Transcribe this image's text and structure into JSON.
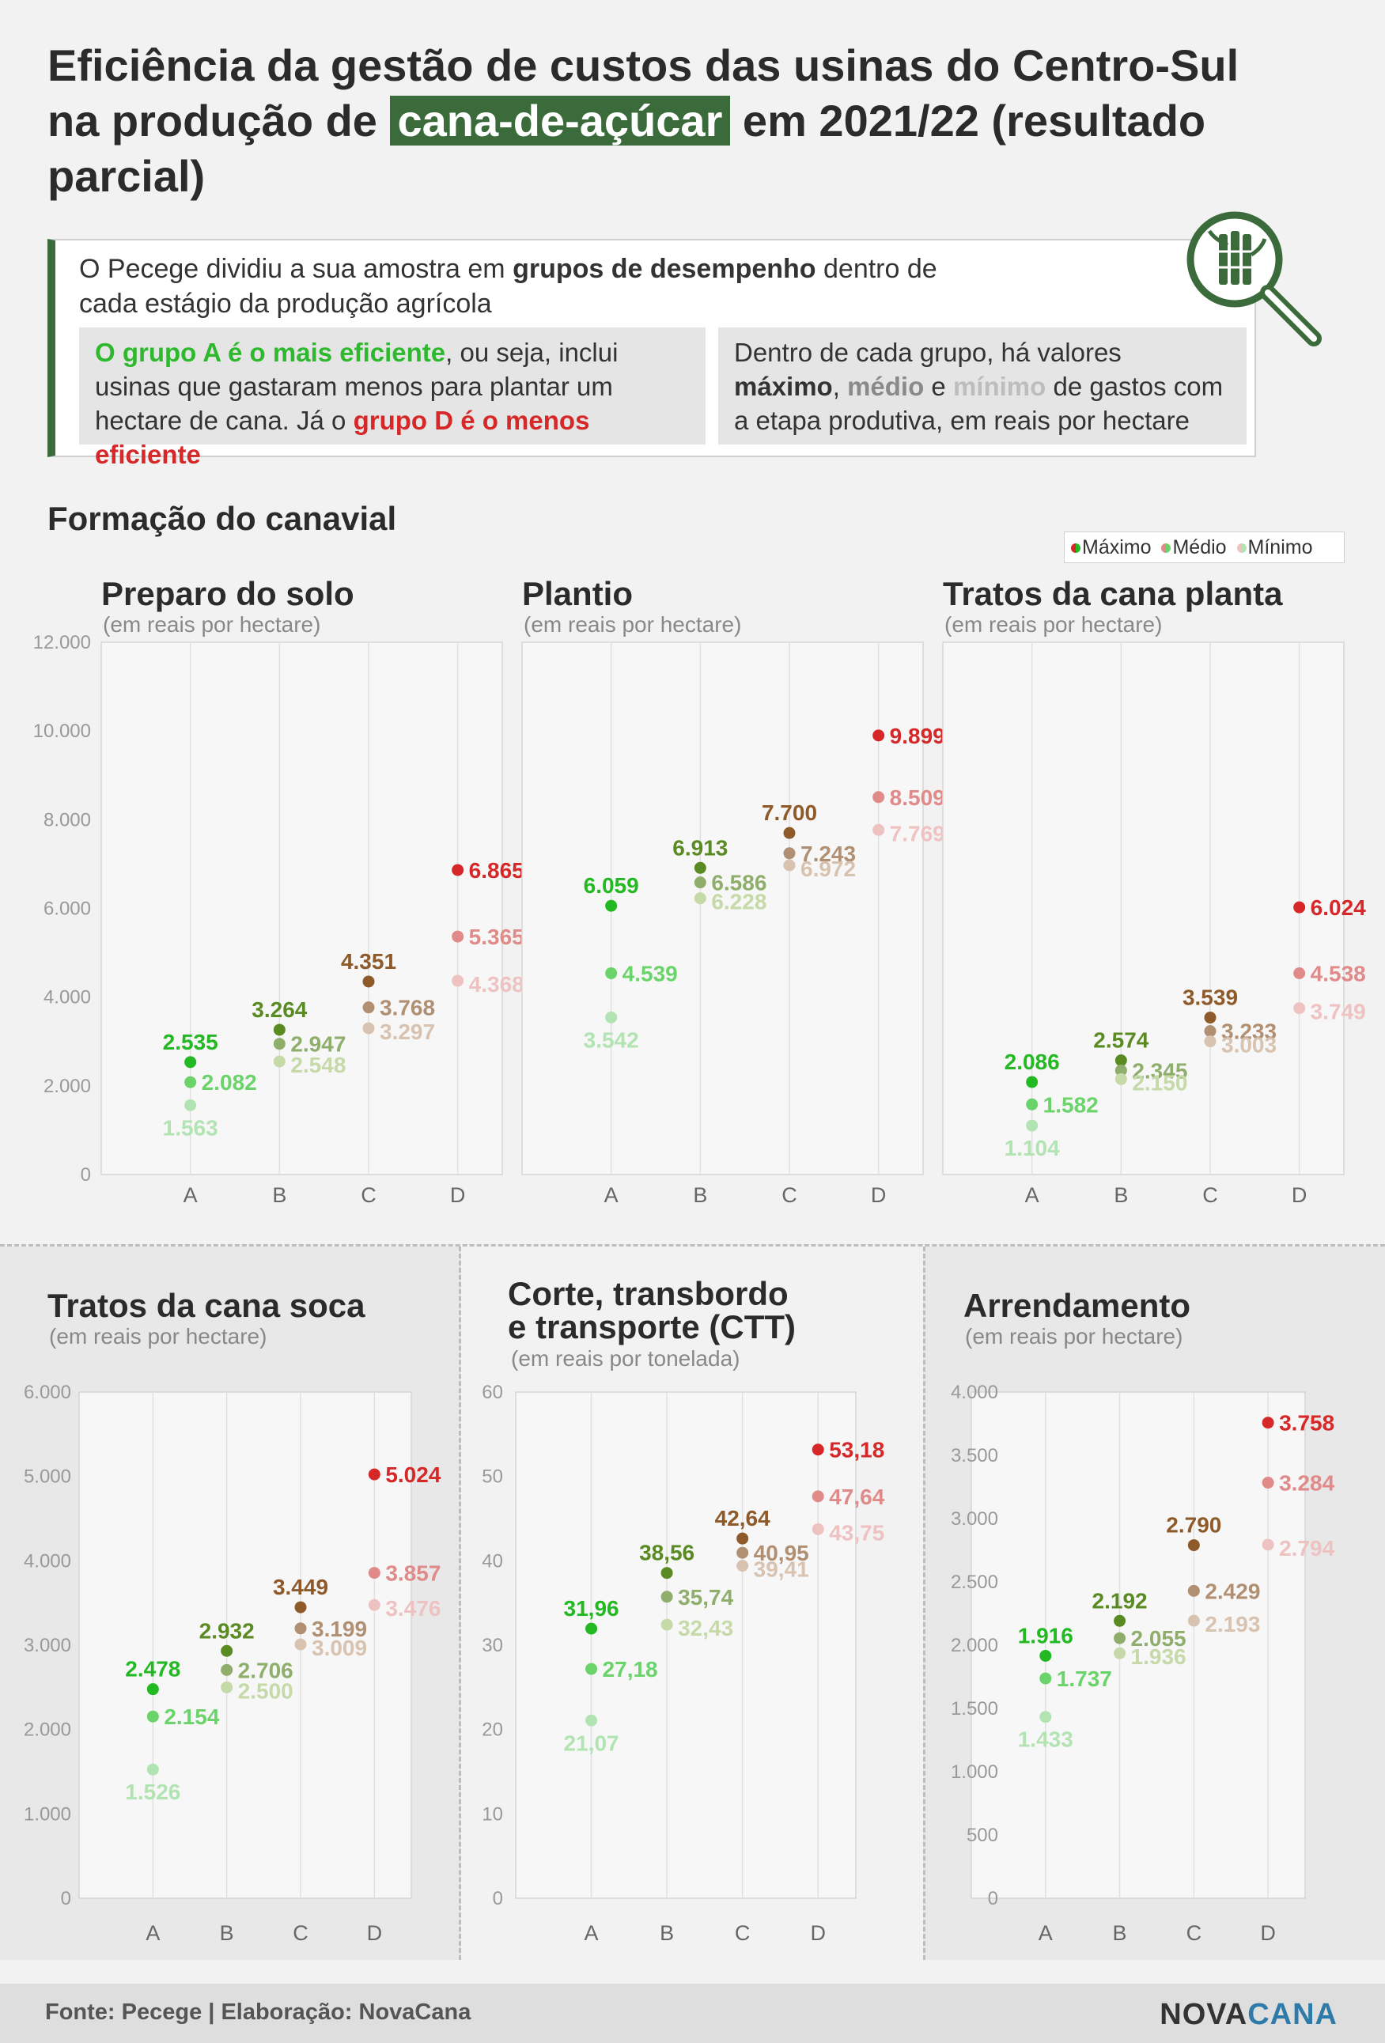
{
  "title": {
    "part1": "Eficiência da gestão de custos das usinas do Centro-Sul na produção de ",
    "highlight": "cana-de-açúcar",
    "part2": " em 2021/22 (resultado parcial)"
  },
  "intro": {
    "p1": "O Pecege dividiu a sua amostra em ",
    "p1_bold": "grupos de desempenho",
    "p1_end": " dentro de cada estágio da produção agrícola",
    "left_green": "O grupo A é o mais eficiente",
    "left_mid": ", ou seja, inclui usinas que gastaram menos para plantar um hectare de cana. Já o ",
    "left_red": "grupo D é o menos eficiente",
    "right_a": "Dentro de cada grupo, há valores ",
    "right_max": "máximo",
    "right_sep1": ", ",
    "right_med": "médio",
    "right_sep2": " e ",
    "right_min": "mínimo",
    "right_end": " de gastos com a etapa produtiva, em reais por hectare"
  },
  "section_title": "Formação do canavial",
  "legend": {
    "max": "Máximo",
    "med": "Médio",
    "min": "Mínimo"
  },
  "colors": {
    "A": [
      "#22b922",
      "#6ad46a",
      "#b2e3b2"
    ],
    "B": [
      "#5a8a22",
      "#8fae6c",
      "#c6d9a8"
    ],
    "C": [
      "#8e5a2a",
      "#b08f72",
      "#d8c2b0"
    ],
    "D": [
      "#d62828",
      "#e08a8a",
      "#efc2c2"
    ]
  },
  "chart_data": [
    {
      "type": "scatter",
      "title": "Preparo do solo",
      "subtitle": "(em reais por hectare)",
      "categories": [
        "A",
        "B",
        "C",
        "D"
      ],
      "ylim": [
        0,
        12000
      ],
      "yticks": [
        0,
        2000,
        4000,
        6000,
        8000,
        10000,
        12000
      ],
      "yticklabels": [
        "0",
        "2.000",
        "4.000",
        "6.000",
        "8.000",
        "10.000",
        "12.000"
      ],
      "series": [
        {
          "name": "Máximo",
          "values": [
            2535,
            3264,
            4351,
            6865
          ],
          "labels": [
            "2.535",
            "3.264",
            "4.351",
            "6.865"
          ]
        },
        {
          "name": "Médio",
          "values": [
            2082,
            2947,
            3768,
            5365
          ],
          "labels": [
            "2.082",
            "2.947",
            "3.768",
            "5.365"
          ]
        },
        {
          "name": "Mínimo",
          "values": [
            1563,
            2548,
            3297,
            4368
          ],
          "labels": [
            "1.563",
            "2.548",
            "3.297",
            "4.368"
          ]
        }
      ]
    },
    {
      "type": "scatter",
      "title": "Plantio",
      "subtitle": "(em reais por hectare)",
      "categories": [
        "A",
        "B",
        "C",
        "D"
      ],
      "ylim": [
        0,
        12000
      ],
      "yticks": [
        0,
        2000,
        4000,
        6000,
        8000,
        10000,
        12000
      ],
      "yticklabels": [],
      "series": [
        {
          "name": "Máximo",
          "values": [
            6059,
            6913,
            7700,
            9899
          ],
          "labels": [
            "6.059",
            "6.913",
            "7.700",
            "9.899"
          ]
        },
        {
          "name": "Médio",
          "values": [
            4539,
            6586,
            7243,
            8509
          ],
          "labels": [
            "4.539",
            "6.586",
            "7.243",
            "8.509"
          ]
        },
        {
          "name": "Mínimo",
          "values": [
            3542,
            6228,
            6972,
            7769
          ],
          "labels": [
            "3.542",
            "6.228",
            "6.972",
            "7.769"
          ]
        }
      ]
    },
    {
      "type": "scatter",
      "title": "Tratos da cana planta",
      "subtitle": "(em reais por hectare)",
      "categories": [
        "A",
        "B",
        "C",
        "D"
      ],
      "ylim": [
        0,
        12000
      ],
      "yticks": [
        0,
        2000,
        4000,
        6000,
        8000,
        10000,
        12000
      ],
      "yticklabels": [],
      "series": [
        {
          "name": "Máximo",
          "values": [
            2086,
            2574,
            3539,
            6024
          ],
          "labels": [
            "2.086",
            "2.574",
            "3.539",
            "6.024"
          ]
        },
        {
          "name": "Médio",
          "values": [
            1582,
            2345,
            3233,
            4538
          ],
          "labels": [
            "1.582",
            "2.345",
            "3.233",
            "4.538"
          ]
        },
        {
          "name": "Mínimo",
          "values": [
            1104,
            2150,
            3003,
            3749
          ],
          "labels": [
            "1.104",
            "2.150",
            "3.003",
            "3.749"
          ]
        }
      ]
    },
    {
      "type": "scatter",
      "title": "Tratos da cana soca",
      "subtitle": "(em reais por hectare)",
      "categories": [
        "A",
        "B",
        "C",
        "D"
      ],
      "ylim": [
        0,
        6000
      ],
      "yticks": [
        0,
        1000,
        2000,
        3000,
        4000,
        5000,
        6000
      ],
      "yticklabels": [
        "0",
        "1.000",
        "2.000",
        "3.000",
        "4.000",
        "5.000",
        "6.000"
      ],
      "series": [
        {
          "name": "Máximo",
          "values": [
            2478,
            2932,
            3449,
            5024
          ],
          "labels": [
            "2.478",
            "2.932",
            "3.449",
            "5.024"
          ]
        },
        {
          "name": "Médio",
          "values": [
            2154,
            2706,
            3199,
            3857
          ],
          "labels": [
            "2.154",
            "2.706",
            "3.199",
            "3.857"
          ]
        },
        {
          "name": "Mínimo",
          "values": [
            1526,
            2500,
            3009,
            3476
          ],
          "labels": [
            "1.526",
            "2.500",
            "3.009",
            "3.476"
          ]
        }
      ]
    },
    {
      "type": "scatter",
      "title": "Corte, transbordo e transporte (CTT)",
      "title_line1": "Corte, transbordo",
      "title_line2": "e transporte (CTT)",
      "subtitle": "(em reais por tonelada)",
      "categories": [
        "A",
        "B",
        "C",
        "D"
      ],
      "ylim": [
        0,
        60
      ],
      "yticks": [
        0,
        10,
        20,
        30,
        40,
        50,
        60
      ],
      "yticklabels": [
        "0",
        "10",
        "20",
        "30",
        "40",
        "50",
        "60"
      ],
      "series": [
        {
          "name": "Máximo",
          "values": [
            31.96,
            38.56,
            42.64,
            53.18
          ],
          "labels": [
            "31,96",
            "38,56",
            "42,64",
            "53,18"
          ]
        },
        {
          "name": "Médio",
          "values": [
            27.18,
            35.74,
            40.95,
            47.64
          ],
          "labels": [
            "27,18",
            "35,74",
            "40,95",
            "47,64"
          ]
        },
        {
          "name": "Mínimo",
          "values": [
            21.07,
            32.43,
            39.41,
            43.75
          ],
          "labels": [
            "21,07",
            "32,43",
            "39,41",
            "43,75"
          ]
        }
      ]
    },
    {
      "type": "scatter",
      "title": "Arrendamento",
      "subtitle": "(em reais por hectare)",
      "categories": [
        "A",
        "B",
        "C",
        "D"
      ],
      "ylim": [
        0,
        4000
      ],
      "yticks": [
        0,
        500,
        1000,
        1500,
        2000,
        2500,
        3000,
        3500,
        4000
      ],
      "yticklabels": [
        "0",
        "500",
        "1.000",
        "1.500",
        "2.000",
        "2.500",
        "3.000",
        "3.500",
        "4.000"
      ],
      "series": [
        {
          "name": "Máximo",
          "values": [
            1916,
            2192,
            2790,
            3758
          ],
          "labels": [
            "1.916",
            "2.192",
            "2.790",
            "3.758"
          ]
        },
        {
          "name": "Médio",
          "values": [
            1737,
            2055,
            2429,
            3284
          ],
          "labels": [
            "1.737",
            "2.055",
            "2.429",
            "3.284"
          ]
        },
        {
          "name": "Mínimo",
          "values": [
            1433,
            1936,
            2193,
            2794
          ],
          "labels": [
            "1.433",
            "1.936",
            "2.193",
            "2.794"
          ]
        }
      ]
    }
  ],
  "footer": {
    "source": "Fonte: Pecege | Elaboração: NovaCana",
    "logo_part1": "NOVA",
    "logo_part2": "CANA"
  }
}
